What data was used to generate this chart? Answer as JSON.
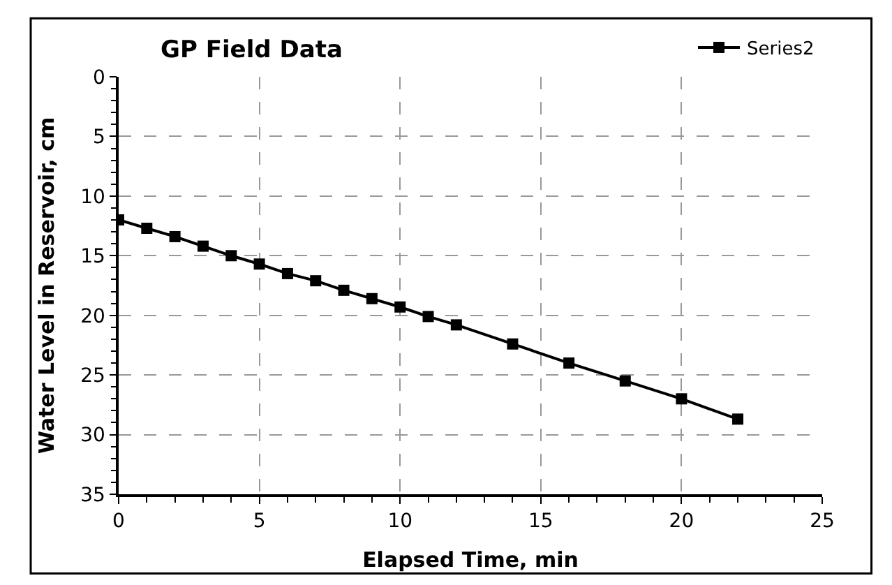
{
  "chart_data": {
    "type": "line",
    "title": "GP Field Data",
    "xlabel": "Elapsed Time, min",
    "ylabel": "Water Level in Reservoir, cm",
    "x": [
      0,
      1,
      2,
      3,
      4,
      5,
      6,
      7,
      8,
      9,
      10,
      11,
      12,
      14,
      16,
      18,
      20,
      22
    ],
    "series": [
      {
        "name": "Series2",
        "color": "#000000",
        "values": [
          12.0,
          12.7,
          13.4,
          14.2,
          15.0,
          15.7,
          16.5,
          17.1,
          17.9,
          18.6,
          19.3,
          20.1,
          20.8,
          22.4,
          24.0,
          25.5,
          27.0,
          28.7
        ]
      }
    ],
    "xlim": [
      0,
      25
    ],
    "xticks": [
      0,
      5,
      10,
      15,
      20,
      25
    ],
    "ylim": [
      35,
      0
    ],
    "yticks": [
      0,
      5,
      10,
      15,
      20,
      25,
      30,
      35
    ],
    "grid": true,
    "legend": "top right",
    "marker": "square",
    "line_style": "solid"
  }
}
